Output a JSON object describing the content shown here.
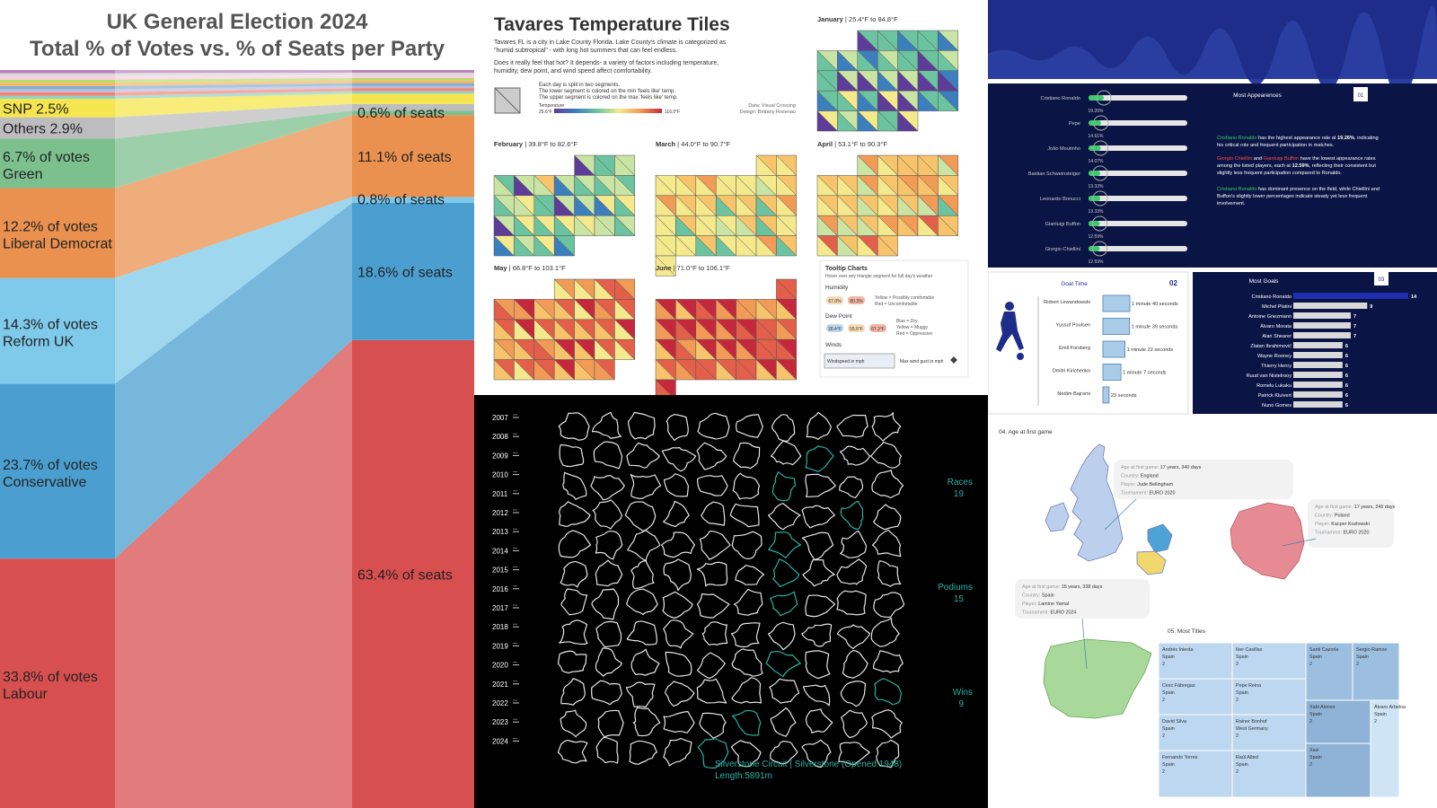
{
  "election": {
    "title_line1": "UK General Election 2024",
    "title_line2": "Total % of Votes vs. % of Seats per Party",
    "parties": [
      {
        "name": "Labour",
        "votes": 33.8,
        "seats": 63.4,
        "color": "#d84f4f",
        "vote_label": "33.8% of votes",
        "seat_label": "63.4% of seats"
      },
      {
        "name": "Conservative",
        "votes": 23.7,
        "seats": 18.6,
        "color": "#4b9fd0",
        "vote_label": "23.7% of votes",
        "seat_label": "18.6% of seats"
      },
      {
        "name": "Reform UK",
        "votes": 14.3,
        "seats": 0.8,
        "color": "#7fcaea",
        "vote_label": "14.3% of votes",
        "seat_label": "0.8% of seats"
      },
      {
        "name": "Liberal Democrat",
        "votes": 12.2,
        "seats": 11.1,
        "color": "#ea914f",
        "vote_label": "12.2% of votes",
        "seat_label": "11.1% of seats"
      },
      {
        "name": "Green",
        "votes": 6.7,
        "seats": 0.6,
        "color": "#7cc08e",
        "vote_label": "6.7% of votes",
        "seat_label": "0.6% of seats"
      },
      {
        "name": "Others",
        "votes": 2.9,
        "seats": 0.9,
        "color": "#bdbdbd",
        "vote_label": "Others 2.9%"
      },
      {
        "name": "SNP",
        "votes": 2.5,
        "seats": 1.4,
        "color": "#f5e54e",
        "vote_label": "SNP 2.5%"
      }
    ],
    "small_colors": [
      "#8dd3c7",
      "#fb8072",
      "#bebada",
      "#80b1d3",
      "#fdb462",
      "#b3de69",
      "#fccde5",
      "#d9d9d9",
      "#bc80bd"
    ]
  },
  "temperature": {
    "title": "Tavares Temperature Tiles",
    "desc1": "Tavares FL is a city in Lake County Florida. Lake County's climate is categorized as",
    "desc2": "\"humid subtropical\" - with long hot summers that can feel endless.",
    "desc3": "Does it really feel that hot? It depends- a variety of factors including temperature,",
    "desc4": "humidity, dew point, and wind speed affect comfortability.",
    "legend1": "Each day is split in two segments.",
    "legend2": "The lower segment is colored on the min 'feels like' temp.",
    "legend3": "The upper segment is colored on the max 'feels like' temp.",
    "legend_label": "Temperature",
    "legend_min": "25.6°F",
    "legend_max": "116.0°F",
    "credit1": "Data: Visual Crossing",
    "credit2": "Design: Brittany Rosenau",
    "months": [
      {
        "name": "January",
        "range": "| 25.4°F to 84.8°F",
        "level": 0.25,
        "offset": 2,
        "days": 31
      },
      {
        "name": "February",
        "range": "| 39.8°F to 82.6°F",
        "level": 0.35,
        "offset": 4,
        "days": 28
      },
      {
        "name": "March",
        "range": "| 44.0°F to 90.7°F",
        "level": 0.5,
        "offset": 5,
        "days": 31
      },
      {
        "name": "April",
        "range": "| 53.1°F to 90.3°F",
        "level": 0.6,
        "offset": 2,
        "days": 30
      },
      {
        "name": "May",
        "range": "| 66.8°F to 103.1°F",
        "level": 0.78,
        "offset": 3,
        "days": 31
      },
      {
        "name": "June",
        "range": "| 71.0°F to 106.1°F",
        "level": 0.88,
        "offset": 6,
        "days": 30
      }
    ],
    "tooltip": {
      "title": "Tooltip Charts",
      "subtitle": "Hover over any triangle segment for full day's weather",
      "humidity": "Humidity",
      "hum_a": "67.0%",
      "hum_b": "80.3%",
      "hum_note1": "Yellow = Possibly comfortable",
      "hum_note2": "Red = Uncomfortable",
      "dew": "Dew Point",
      "dew_a": "28.4°F",
      "dew_b": "55.6°F",
      "dew_c": "67.3°F",
      "dew_note1": "Blue = Dry",
      "dew_note2": "Yellow = Muggy",
      "dew_note3": "Red = Oppressive",
      "winds": "Winds",
      "wind_a": "Windspeed in mph",
      "wind_b": "Max wind gust in mph"
    }
  },
  "f1": {
    "years": [
      "2007",
      "2008",
      "2009",
      "2010",
      "2011",
      "2012",
      "2013",
      "2014",
      "2015",
      "2016",
      "2017",
      "2018",
      "2019",
      "2020",
      "2021",
      "2022",
      "2023",
      "2024"
    ],
    "stats": [
      {
        "label": "Races",
        "value": "19"
      },
      {
        "label": "Podiums",
        "value": "15"
      },
      {
        "label": "Wins",
        "value": "9"
      }
    ],
    "caption1": "Silverstone Circuit  |  Silverstone (Opened 1948)",
    "caption2": "Length:5891m",
    "accent": "#27b3a5"
  },
  "euro": {
    "appear_title": "Most Appearences",
    "appear_num": "01",
    "appear": [
      {
        "name": "Cristiano Ronaldo",
        "pct": "19.26%",
        "v": 19.26
      },
      {
        "name": "Pepe",
        "pct": "14.61%",
        "v": 14.61
      },
      {
        "name": "João Moutinho",
        "pct": "14.07%",
        "v": 14.07
      },
      {
        "name": "Bastian Schweinsteiger",
        "pct": "13.33%",
        "v": 13.33
      },
      {
        "name": "Leonardo Bonucci",
        "pct": "13.33%",
        "v": 13.33
      },
      {
        "name": "Gianluigi Buffon",
        "pct": "12.59%",
        "v": 12.59
      },
      {
        "name": "Giorgio Chiellini",
        "pct": "12.59%",
        "v": 12.59
      }
    ],
    "appear_text1a": "Cristiano Ronaldo",
    "appear_text1b": " has the highest appearance rate at ",
    "appear_text1c": "19.26%",
    "appear_text1d": ", indicating",
    "appear_text1e": "his critical role and frequent participation in matches.",
    "appear_text2a": "Giorgio Chiellini",
    "appear_text2b": " and ",
    "appear_text2c": "Gianluigi Buffon",
    "appear_text2d": " have the lowest appearance rates",
    "appear_text2e": "among the listed players, each at ",
    "appear_text2f": "12.59%",
    "appear_text2g": ", reflecting their consistent but",
    "appear_text2h": "slightly less frequent participation compared to Ronaldo.",
    "appear_text3a": "Cristiano Ronaldo",
    "appear_text3b": " has  dominant presence on the field, while Chiellini and",
    "appear_text3c": "Buffon's slightly lower percentages indicate steady yet less frequent",
    "appear_text3d": "involvement.",
    "goal_title": "Goal Time",
    "goal_num": "02",
    "goals_time": [
      {
        "name": "Robert Lewandowski",
        "label": "1 minute 40 seconds",
        "v": 100
      },
      {
        "name": "Yussuf Poulsen",
        "label": "1 minute 39 seconds",
        "v": 99
      },
      {
        "name": "Emil Forsberg",
        "label": "1 minute 22 seconds",
        "v": 82
      },
      {
        "name": "Dmitri Kirichenko",
        "label": "1 minute 7 seconds",
        "v": 67
      },
      {
        "name": "Nedim Bajrami",
        "label": "23 seconds",
        "v": 23
      }
    ],
    "most_title": "Most Goals",
    "most_num": "03",
    "most": [
      {
        "name": "Cristiano Ronaldo",
        "v": 14
      },
      {
        "name": "Michel Platini",
        "v": 9
      },
      {
        "name": "Antoine Griezmann",
        "v": 7
      },
      {
        "name": "Álvaro Morata",
        "v": 7
      },
      {
        "name": "Alan Shearer",
        "v": 7
      },
      {
        "name": "Zlatan Ibrahimović",
        "v": 6
      },
      {
        "name": "Wayne Rooney",
        "v": 6
      },
      {
        "name": "Thierry Henry",
        "v": 6
      },
      {
        "name": "Ruud van Nistelrooy",
        "v": 6
      },
      {
        "name": "Romelu Lukaku",
        "v": 6
      },
      {
        "name": "Patrick Kluivert",
        "v": 6
      },
      {
        "name": "Nuno Gomes",
        "v": 6
      }
    ],
    "age_title": "04. Age at first game",
    "age_key_age": "Age at first game: ",
    "age_key_country": "Country: ",
    "age_key_player": "Player: ",
    "age_key_tour": "Tournament: ",
    "ages": [
      {
        "age": "17 years, 340 days",
        "country": "England",
        "player": "Jude Bellingham",
        "tour": "EURO 2020"
      },
      {
        "age": "17 years, 246 days",
        "country": "Poland",
        "player": "Kacper Kozlowski",
        "tour": "EURO 2020"
      },
      {
        "age": "16 years, 338 days",
        "country": "Spain",
        "player": "Lamine Yamal",
        "tour": "EURO 2024"
      }
    ],
    "titles_title": "05. Most Titles",
    "titles": [
      {
        "name": "Andrés Iniesta",
        "country": "Spain",
        "v": "2"
      },
      {
        "name": "Iker Casillas",
        "country": "Spain",
        "v": "2"
      },
      {
        "name": "Santi Cazorla",
        "country": "Spain",
        "v": "2"
      },
      {
        "name": "Sergio Ramos",
        "country": "Spain",
        "v": "2"
      },
      {
        "name": "Cesc Fàbregas",
        "country": "Spain",
        "v": "2"
      },
      {
        "name": "Pepe Reina",
        "country": "Spain",
        "v": "2"
      },
      {
        "name": "Xabi Alonso",
        "country": "Spain",
        "v": "2"
      },
      {
        "name": "Álvaro Arbeloa",
        "country": "Spain",
        "v": "2"
      },
      {
        "name": "David Silva",
        "country": "Spain",
        "v": "2"
      },
      {
        "name": "Rainer Bonhof",
        "country": "West Germany",
        "v": "2"
      },
      {
        "name": "Xavi",
        "country": "Spain",
        "v": "2"
      },
      {
        "name": "Fernando Torres",
        "country": "Spain",
        "v": "2"
      },
      {
        "name": "Raúl Albiol",
        "country": "Spain",
        "v": "2"
      }
    ]
  },
  "chart_data": [
    {
      "type": "area",
      "title": "UK General Election 2024 Total % of Votes vs. % of Seats per Party",
      "categories": [
        "% of votes",
        "% of seats"
      ],
      "series": [
        {
          "name": "Labour",
          "values": [
            33.8,
            63.4
          ]
        },
        {
          "name": "Conservative",
          "values": [
            23.7,
            18.6
          ]
        },
        {
          "name": "Reform UK",
          "values": [
            14.3,
            0.8
          ]
        },
        {
          "name": "Liberal Democrat",
          "values": [
            12.2,
            11.1
          ]
        },
        {
          "name": "Green",
          "values": [
            6.7,
            0.6
          ]
        },
        {
          "name": "Others",
          "values": [
            2.9,
            null
          ]
        },
        {
          "name": "SNP",
          "values": [
            2.5,
            null
          ]
        }
      ]
    },
    {
      "type": "heatmap",
      "title": "Tavares Temperature Tiles",
      "categories": [
        "January",
        "February",
        "March",
        "April",
        "May",
        "June"
      ],
      "values_min": [
        25.4,
        39.8,
        44.0,
        53.1,
        66.8,
        71.0
      ],
      "values_max": [
        84.8,
        82.6,
        90.7,
        90.3,
        103.1,
        106.1
      ]
    },
    {
      "type": "bar",
      "title": "Most Appearences",
      "categories": [
        "Cristiano Ronaldo",
        "Pepe",
        "João Moutinho",
        "Bastian Schweinsteiger",
        "Leonardo Bonucci",
        "Gianluigi Buffon",
        "Giorgio Chiellini"
      ],
      "values": [
        19.26,
        14.61,
        14.07,
        13.33,
        13.33,
        12.59,
        12.59
      ]
    },
    {
      "type": "bar",
      "title": "Goal Time",
      "categories": [
        "Robert Lewandowski",
        "Yussuf Poulsen",
        "Emil Forsberg",
        "Dmitri Kirichenko",
        "Nedim Bajrami"
      ],
      "values": [
        100,
        99,
        82,
        67,
        23
      ]
    },
    {
      "type": "bar",
      "title": "Most Goals",
      "categories": [
        "Cristiano Ronaldo",
        "Michel Platini",
        "Antoine Griezmann",
        "Álvaro Morata",
        "Alan Shearer",
        "Zlatan Ibrahimović",
        "Wayne Rooney",
        "Thierry Henry",
        "Ruud van Nistelrooy",
        "Romelu Lukaku",
        "Patrick Kluivert",
        "Nuno Gomes"
      ],
      "values": [
        14,
        9,
        7,
        7,
        7,
        6,
        6,
        6,
        6,
        6,
        6,
        6
      ]
    }
  ]
}
